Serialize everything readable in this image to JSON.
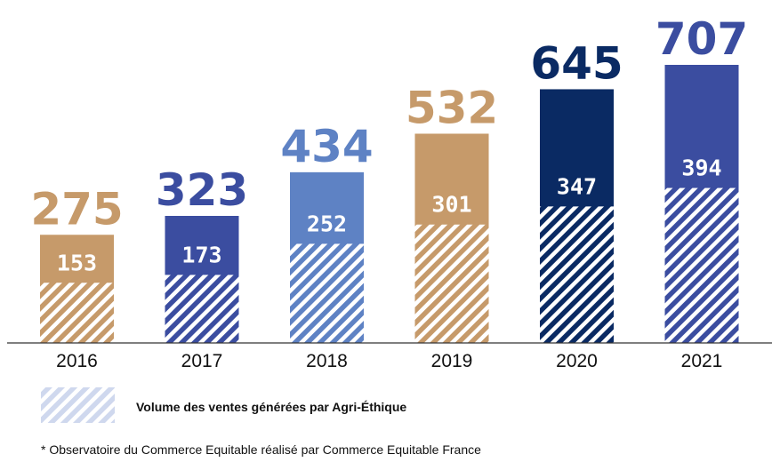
{
  "chart_data": {
    "type": "bar",
    "categories": [
      "2016",
      "2017",
      "2018",
      "2019",
      "2020",
      "2021"
    ],
    "series": [
      {
        "values": [
          275,
          323,
          434,
          532,
          645,
          707
        ]
      },
      {
        "name": "Volume des ventes générées par Agri-Éthique",
        "values": [
          153,
          173,
          252,
          301,
          347,
          394
        ]
      }
    ],
    "title": "",
    "xlabel": "",
    "ylabel": "",
    "ylim": [
      0,
      707
    ],
    "grid": false,
    "legend": "bottom-left",
    "colors": [
      "#C69A6A",
      "#3B4DA0",
      "#5E82C4",
      "#C69A6A",
      "#0A2A63",
      "#3B4DA0"
    ],
    "legend_color": "#CFD8EE"
  },
  "legend": {
    "label": "Volume des ventes générées par Agri-Éthique"
  },
  "footnote": "* Observatoire du Commerce Equitable réalisé par Commerce Equitable France"
}
